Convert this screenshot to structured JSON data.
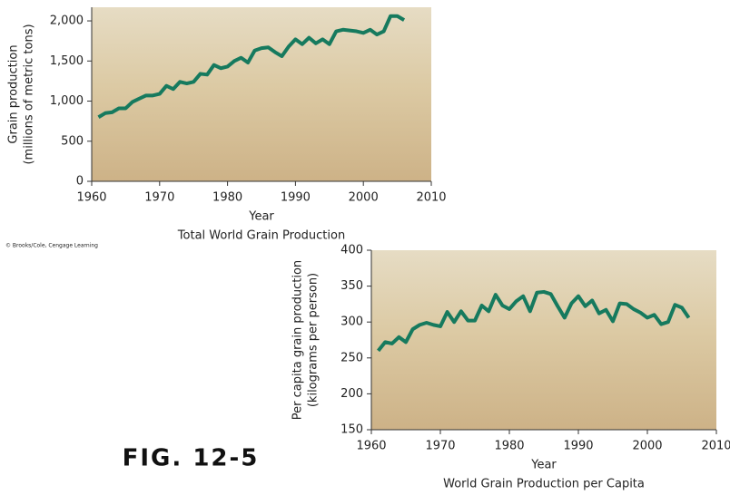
{
  "credit": "© Brooks/Cole, Cengage Learning",
  "figure_label": "FIG. 12-5",
  "chart_data": [
    {
      "type": "line",
      "title": "Total World Grain Production",
      "x_label": "Year",
      "y_label": [
        "Grain production",
        "(millions of metric tons)"
      ],
      "x": [
        1961,
        1962,
        1963,
        1964,
        1965,
        1966,
        1967,
        1968,
        1969,
        1970,
        1971,
        1972,
        1973,
        1974,
        1975,
        1976,
        1977,
        1978,
        1979,
        1980,
        1981,
        1982,
        1983,
        1984,
        1985,
        1986,
        1987,
        1988,
        1989,
        1990,
        1991,
        1992,
        1993,
        1994,
        1995,
        1996,
        1997,
        1998,
        1999,
        2000,
        2001,
        2002,
        2003,
        2004,
        2005,
        2006
      ],
      "series": [
        {
          "name": "Total World Grain Production",
          "color": "#167a5e",
          "values": [
            800,
            850,
            860,
            910,
            910,
            990,
            1030,
            1070,
            1070,
            1090,
            1190,
            1150,
            1240,
            1220,
            1240,
            1340,
            1330,
            1450,
            1410,
            1430,
            1500,
            1540,
            1480,
            1630,
            1660,
            1670,
            1610,
            1560,
            1680,
            1770,
            1710,
            1790,
            1720,
            1770,
            1710,
            1870,
            1890,
            1880,
            1870,
            1850,
            1890,
            1830,
            1870,
            2060,
            2060,
            2010
          ]
        }
      ],
      "xlim": [
        1960,
        2010
      ],
      "xticks": [
        1960,
        1970,
        1980,
        1990,
        2000,
        2010
      ],
      "ylim": [
        0,
        2170
      ],
      "yticks": [
        0,
        500,
        {
          "value": 1000,
          "label": "1,000"
        },
        {
          "value": 1500,
          "label": "1,500"
        },
        {
          "value": 2000,
          "label": "2,000"
        }
      ]
    },
    {
      "type": "line",
      "title": "World Grain Production per Capita",
      "x_label": "Year",
      "y_label": [
        "Per capita grain production",
        "(kilograms per person)"
      ],
      "x": [
        1961,
        1962,
        1963,
        1964,
        1965,
        1966,
        1967,
        1968,
        1969,
        1970,
        1971,
        1972,
        1973,
        1974,
        1975,
        1976,
        1977,
        1978,
        1979,
        1980,
        1981,
        1982,
        1983,
        1984,
        1985,
        1986,
        1987,
        1988,
        1989,
        1990,
        1991,
        1992,
        1993,
        1994,
        1995,
        1996,
        1997,
        1998,
        1999,
        2000,
        2001,
        2002,
        2003,
        2004,
        2005,
        2006
      ],
      "series": [
        {
          "name": "World Grain Production per Capita",
          "color": "#167a5e",
          "values": [
            260,
            272,
            270,
            279,
            272,
            290,
            296,
            299,
            296,
            294,
            314,
            300,
            315,
            302,
            302,
            323,
            315,
            338,
            323,
            318,
            329,
            336,
            315,
            341,
            342,
            339,
            322,
            306,
            326,
            336,
            322,
            330,
            312,
            317,
            301,
            326,
            325,
            318,
            313,
            306,
            310,
            297,
            300,
            324,
            320,
            306
          ]
        }
      ],
      "xlim": [
        1960,
        2010
      ],
      "xticks": [
        1960,
        1970,
        1980,
        1990,
        2000,
        2010
      ],
      "ylim": [
        150,
        400
      ],
      "yticks": [
        150,
        200,
        250,
        300,
        350,
        400
      ]
    }
  ]
}
